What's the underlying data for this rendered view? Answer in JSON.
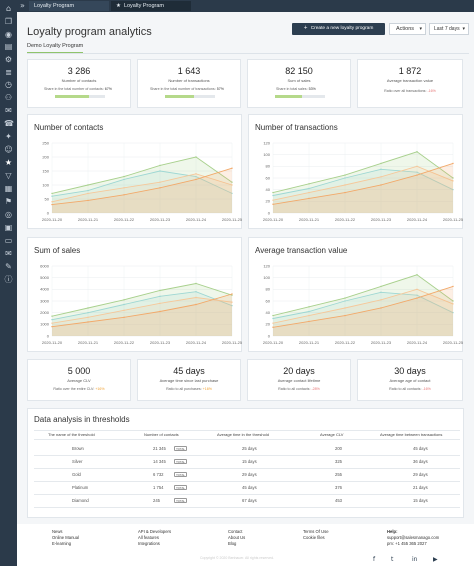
{
  "tabs": [
    {
      "label": "Loyalty Program"
    },
    {
      "label": "Loyalty Program"
    }
  ],
  "page": {
    "title": "Loyalty program analytics",
    "create_button": "Create a new loyalty program",
    "actions_button": "Actions",
    "range_select": "Last 7 days",
    "subtab": "Demo Loyalty Program"
  },
  "stats": [
    {
      "value": "3 286",
      "label": "Number of contacts",
      "share_label": "Share in the total number of contacts:",
      "share_value": "67%",
      "share_fraction": 0.67
    },
    {
      "value": "1 643",
      "label": "Number of transactions",
      "share_label": "Share in the total number of transactions:",
      "share_value": "57%",
      "share_fraction": 0.57
    },
    {
      "value": "82 150",
      "label": "Sum of sales",
      "share_label": "Share in total sales:",
      "share_value": "53%",
      "share_fraction": 0.53
    },
    {
      "value": "1 872",
      "label": "Average transaction value",
      "ratio_label": "Ratio over all transactions:",
      "ratio_value": "-16%"
    }
  ],
  "metrics": [
    {
      "value": "5 000",
      "label": "Average CLV",
      "ratio_label": "Ratio over the entire CLV:",
      "ratio_value": "+16%"
    },
    {
      "value": "45 days",
      "label": "Average time since last purchase",
      "ratio_label": "Ratio to all purchases:",
      "ratio_value": "+16%"
    },
    {
      "value": "20 days",
      "label": "Average contact lifetime",
      "ratio_label": "Ratio to all contacts:",
      "ratio_value": "-28%"
    },
    {
      "value": "30 days",
      "label": "Average age of contact",
      "ratio_label": "Ratio to all contacts:",
      "ratio_value": "-16%"
    }
  ],
  "chart_data": [
    {
      "type": "area",
      "title": "Number of contacts",
      "categories": [
        "2020-11-20",
        "2020-11-21",
        "2020-11-22",
        "2020-11-23",
        "2020-11-24",
        "2020-11-25"
      ],
      "yticks": [
        "0",
        "50",
        "100",
        "150",
        "200",
        "250"
      ],
      "ylim": [
        0,
        250
      ],
      "series": [
        {
          "values": [
            70,
            100,
            130,
            170,
            200,
            110
          ]
        },
        {
          "values": [
            60,
            80,
            120,
            150,
            130,
            70
          ]
        },
        {
          "values": [
            40,
            70,
            90,
            110,
            140,
            100
          ]
        },
        {
          "values": [
            30,
            45,
            65,
            90,
            120,
            160
          ]
        }
      ]
    },
    {
      "type": "area",
      "title": "Number of transactions",
      "categories": [
        "2020-11-20",
        "2020-11-21",
        "2020-11-22",
        "2020-11-23",
        "2020-11-24",
        "2020-11-25"
      ],
      "yticks": [
        "0",
        "20",
        "40",
        "60",
        "80",
        "100",
        "120"
      ],
      "ylim": [
        0,
        120
      ],
      "series": [
        {
          "values": [
            35,
            50,
            65,
            85,
            105,
            60
          ]
        },
        {
          "values": [
            30,
            42,
            60,
            75,
            70,
            40
          ]
        },
        {
          "values": [
            22,
            35,
            48,
            62,
            80,
            55
          ]
        },
        {
          "values": [
            15,
            25,
            35,
            48,
            65,
            85
          ]
        }
      ]
    },
    {
      "type": "area",
      "title": "Sum of sales",
      "categories": [
        "2020-11-20",
        "2020-11-21",
        "2020-11-22",
        "2020-11-23",
        "2020-11-24",
        "2020-11-25"
      ],
      "yticks": [
        "0",
        "1000",
        "2000",
        "3000",
        "4000",
        "5000",
        "6000"
      ],
      "ylim": [
        0,
        6000
      ],
      "series": [
        {
          "values": [
            1700,
            2400,
            3100,
            3900,
            4500,
            3500
          ]
        },
        {
          "values": [
            1400,
            2000,
            2700,
            3400,
            3800,
            2600
          ]
        },
        {
          "values": [
            1100,
            1600,
            2200,
            2800,
            3300,
            2900
          ]
        },
        {
          "values": [
            800,
            1200,
            1600,
            2100,
            2700,
            3600
          ]
        }
      ]
    },
    {
      "type": "area",
      "title": "Average transaction value",
      "categories": [
        "2020-11-20",
        "2020-11-21",
        "2020-11-22",
        "2020-11-23",
        "2020-11-24",
        "2020-11-25"
      ],
      "yticks": [
        "0",
        "20",
        "40",
        "60",
        "80",
        "100",
        "120"
      ],
      "ylim": [
        0,
        120
      ],
      "series": [
        {
          "values": [
            35,
            50,
            65,
            85,
            105,
            60
          ]
        },
        {
          "values": [
            30,
            42,
            60,
            75,
            70,
            40
          ]
        },
        {
          "values": [
            22,
            35,
            48,
            62,
            80,
            55
          ]
        },
        {
          "values": [
            15,
            25,
            35,
            48,
            65,
            85
          ]
        }
      ]
    }
  ],
  "series_colors": [
    "#a8d08d",
    "#9ed7d3",
    "#f6c89a",
    "#f2a96a"
  ],
  "thresholds": {
    "title": "Data analysis in thresholds",
    "headers": [
      "The name of the threshold",
      "Number of contacts",
      "Average time in the threshold",
      "Average CLV",
      "Average time between transactions"
    ],
    "rows": [
      {
        "name": "Brown",
        "contacts": "21 345",
        "badge": "TOTAL",
        "time": "25 days",
        "clv": "200",
        "between": "45 days"
      },
      {
        "name": "Silver",
        "contacts": "14 345",
        "badge": "TOTAL",
        "time": "15 days",
        "clv": "325",
        "between": "36 days"
      },
      {
        "name": "Gold",
        "contacts": "6 732",
        "badge": "TOTAL",
        "time": "29 days",
        "clv": "255",
        "between": "29 days"
      },
      {
        "name": "Platinum",
        "contacts": "1 754",
        "badge": "TOTAL",
        "time": "45 days",
        "clv": "376",
        "between": "21 days"
      },
      {
        "name": "Diamond",
        "contacts": "245",
        "badge": "TOTAL",
        "time": "67 days",
        "clv": "453",
        "between": "15 days"
      }
    ]
  },
  "footer": {
    "col1": [
      "News",
      "Online Manual",
      "E-learning"
    ],
    "col2": [
      "API & Developers",
      "All features",
      "Integrations"
    ],
    "col3": [
      "Contact",
      "About Us",
      "Blog"
    ],
    "col4": [
      "Terms Of Use",
      "Cookie files"
    ],
    "help_title": "Help:",
    "help_email": "support@salesmanago.com",
    "help_phone": "pm: +1 455 365 2027",
    "copyright": "Copyright © 2020 Benhauer. All rights reserved."
  }
}
